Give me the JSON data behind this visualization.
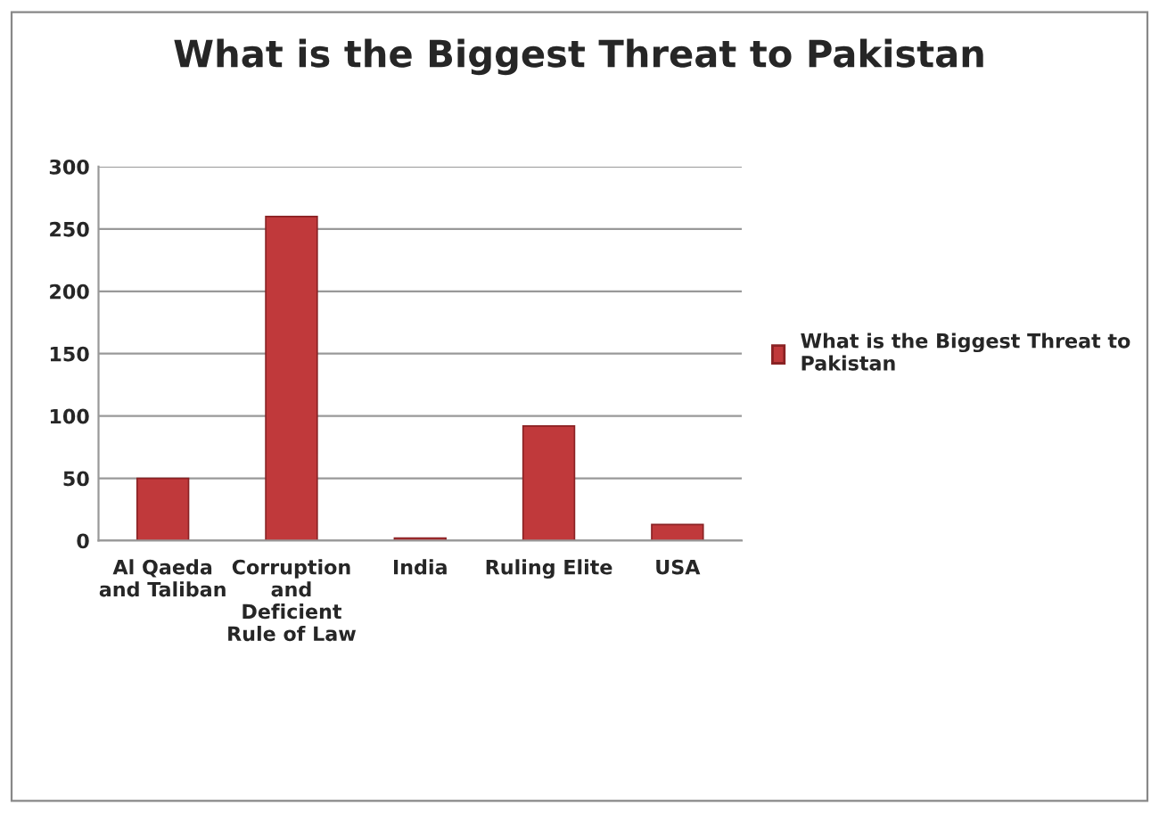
{
  "chart_data": {
    "type": "bar",
    "title": "What is the Biggest Threat to Pakistan",
    "categories": [
      "Al Qaeda\nand Taliban",
      "Corruption\nand\nDeficient\nRule of Law",
      "India",
      "Ruling Elite",
      "USA"
    ],
    "series": [
      {
        "name": "What is the Biggest Threat to\nPakistan",
        "color": "#c0393b",
        "values": [
          50,
          260,
          2,
          92,
          13
        ]
      }
    ],
    "ylim": [
      0,
      300
    ],
    "yticks": [
      0,
      50,
      100,
      150,
      200,
      250,
      300
    ],
    "grid": "y",
    "legend": "right"
  }
}
